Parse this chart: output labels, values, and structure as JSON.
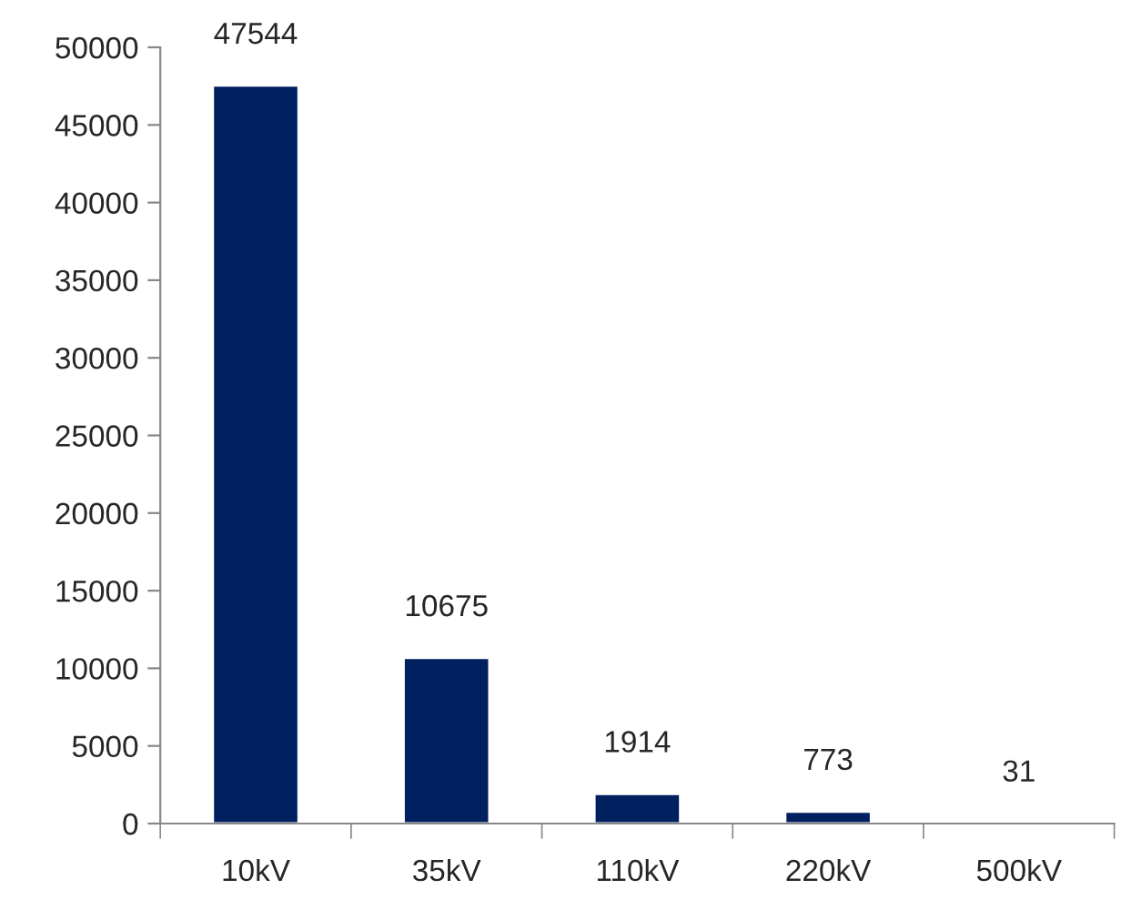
{
  "chart_data": {
    "type": "bar",
    "categories": [
      "10kV",
      "35kV",
      "110kV",
      "220kV",
      "500kV"
    ],
    "values": [
      47544,
      10675,
      1914,
      773,
      31
    ],
    "color": "#002060",
    "ylim": [
      0,
      50000
    ],
    "yticks": [
      0,
      5000,
      10000,
      15000,
      20000,
      25000,
      30000,
      35000,
      40000,
      45000,
      50000
    ],
    "data_labels": true,
    "grid": false,
    "legend": false
  }
}
